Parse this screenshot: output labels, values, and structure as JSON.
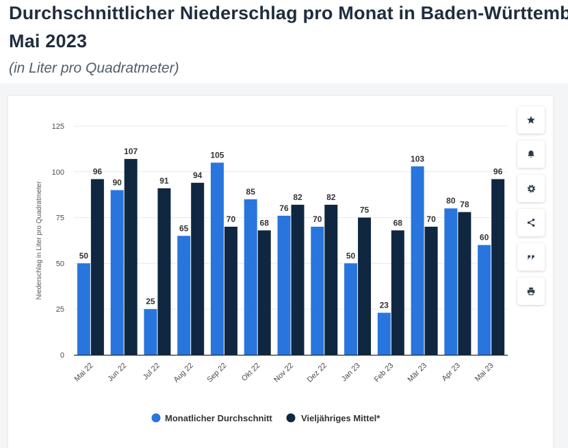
{
  "header": {
    "title_line1": "Durchschnittlicher Niederschlag pro Monat in Baden-Württemberg",
    "title_line2": "Mai 2023",
    "subtitle": "(in Liter pro Quadratmeter)"
  },
  "toolbar": {
    "favorite_icon": "star-icon",
    "notify_icon": "bell-icon",
    "settings_icon": "gear-icon",
    "share_icon": "share-icon",
    "cite_icon": "quote-icon",
    "print_icon": "print-icon"
  },
  "chart_data": {
    "type": "bar",
    "title": "",
    "xlabel": "",
    "ylabel": "Niederschlag in Liter pro Quadratmeter",
    "ylim": [
      0,
      125
    ],
    "yticks": [
      0,
      25,
      50,
      75,
      100,
      125
    ],
    "grid": true,
    "legend_position": "bottom",
    "categories": [
      "Mai 22",
      "Jun 22",
      "Jul 22",
      "Aug 22",
      "Sep 22",
      "Okt 22",
      "Nov 22",
      "Dez 22",
      "Jan 23",
      "Feb 23",
      "Mär 23",
      "Apr 23",
      "Mai 23"
    ],
    "series": [
      {
        "name": "Monatlicher Durchschnitt",
        "color": "#2876dd",
        "values": [
          50,
          90,
          25,
          65,
          105,
          85,
          76,
          70,
          50,
          23,
          103,
          80,
          60
        ]
      },
      {
        "name": "Vieljähriges Mittel*",
        "color": "#0f2740",
        "values": [
          96,
          107,
          91,
          94,
          70,
          68,
          82,
          82,
          75,
          68,
          70,
          78,
          96
        ]
      }
    ]
  }
}
